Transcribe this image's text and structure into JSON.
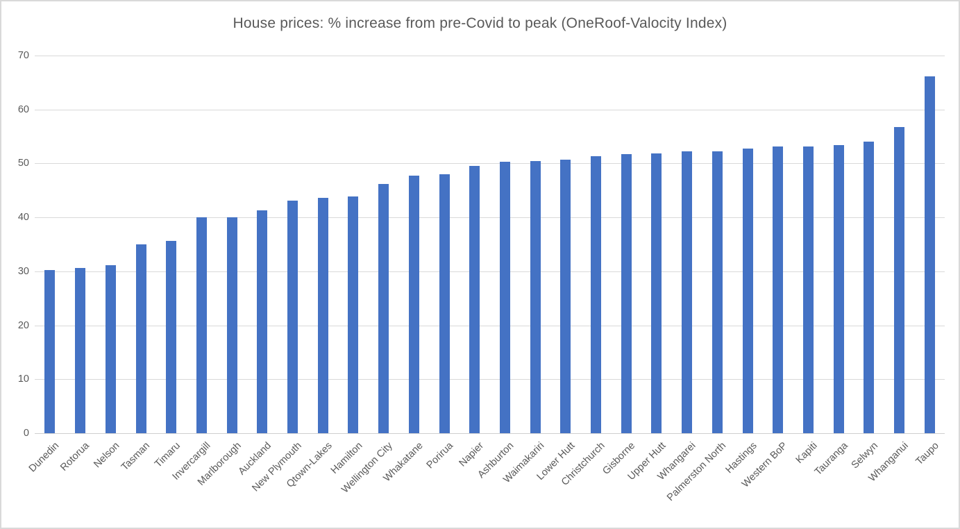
{
  "chart_data": {
    "type": "bar",
    "title": "House prices: % increase from pre-Covid to peak (OneRoof-Valocity Index)",
    "categories": [
      "Dunedin",
      "Rotorua",
      "Nelson",
      "Tasman",
      "Timaru",
      "Invercargill",
      "Marlborough",
      "Auckland",
      "New Plymouth",
      "Qtown-Lakes",
      "Hamilton",
      "Wellington City",
      "Whakatane",
      "Porirua",
      "Napier",
      "Ashburton",
      "Waimakariri",
      "Lower Hutt",
      "Christchurch",
      "Gisborne",
      "Upper Hutt",
      "Whangarei",
      "Palmerston North",
      "Hastings",
      "Western BoP",
      "Kapiti",
      "Tauranga",
      "Selwyn",
      "Whanganui",
      "Taupo"
    ],
    "values": [
      30.3,
      30.6,
      31.1,
      35.0,
      35.7,
      40.0,
      40.0,
      41.3,
      43.1,
      43.6,
      43.9,
      46.2,
      47.8,
      48.0,
      49.5,
      50.3,
      50.4,
      50.7,
      51.3,
      51.7,
      51.9,
      52.2,
      52.2,
      52.7,
      53.2,
      53.2,
      53.4,
      54.1,
      56.7,
      66.2
    ],
    "xlabel": "",
    "ylabel": "",
    "ylim": [
      0,
      70
    ],
    "ytick_step": 10,
    "ytick_labels": [
      "0",
      "10",
      "20",
      "30",
      "40",
      "50",
      "60",
      "70"
    ],
    "grid": "horizontal",
    "legend": "none"
  },
  "colors": {
    "bar": "#4472c4",
    "gridline": "#d9d9d9",
    "axis_line": "#cfcfcf",
    "text": "#595959",
    "frame_border": "#d9d9d9",
    "background": "#ffffff"
  }
}
